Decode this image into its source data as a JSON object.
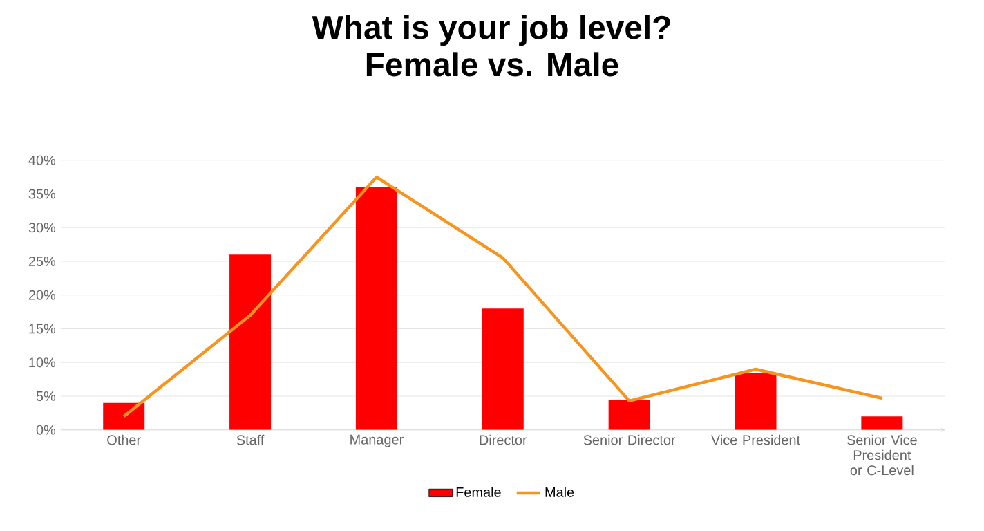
{
  "chart_data": {
    "type": "bar",
    "title": "What is your job level?\nFemale vs. Male",
    "categories": [
      "Other",
      "Staff",
      "Manager",
      "Director",
      "Senior Director",
      "Vice President",
      "Senior Vice President or C-Level"
    ],
    "series": [
      {
        "name": "Female",
        "color": "#ff0000",
        "values": [
          4,
          26,
          36,
          18,
          4.5,
          8.5,
          2
        ]
      },
      {
        "name": "Male",
        "type": "line",
        "color": "#f7941d",
        "values": [
          2,
          17,
          37.5,
          25.5,
          4.3,
          9,
          4.7
        ]
      }
    ],
    "ylim": [
      0,
      40
    ],
    "yticks": [
      {
        "value": 0,
        "label": "0%"
      },
      {
        "value": 5,
        "label": "5%"
      },
      {
        "value": 10,
        "label": "10%"
      },
      {
        "value": 15,
        "label": "15%"
      },
      {
        "value": 20,
        "label": "20%"
      },
      {
        "value": 25,
        "label": "25%"
      },
      {
        "value": 30,
        "label": "30%"
      },
      {
        "value": 35,
        "label": "35%"
      },
      {
        "value": 40,
        "label": "40%"
      }
    ],
    "grid": "y",
    "legend": "bottom",
    "marker": "none",
    "line_style": "solid"
  }
}
